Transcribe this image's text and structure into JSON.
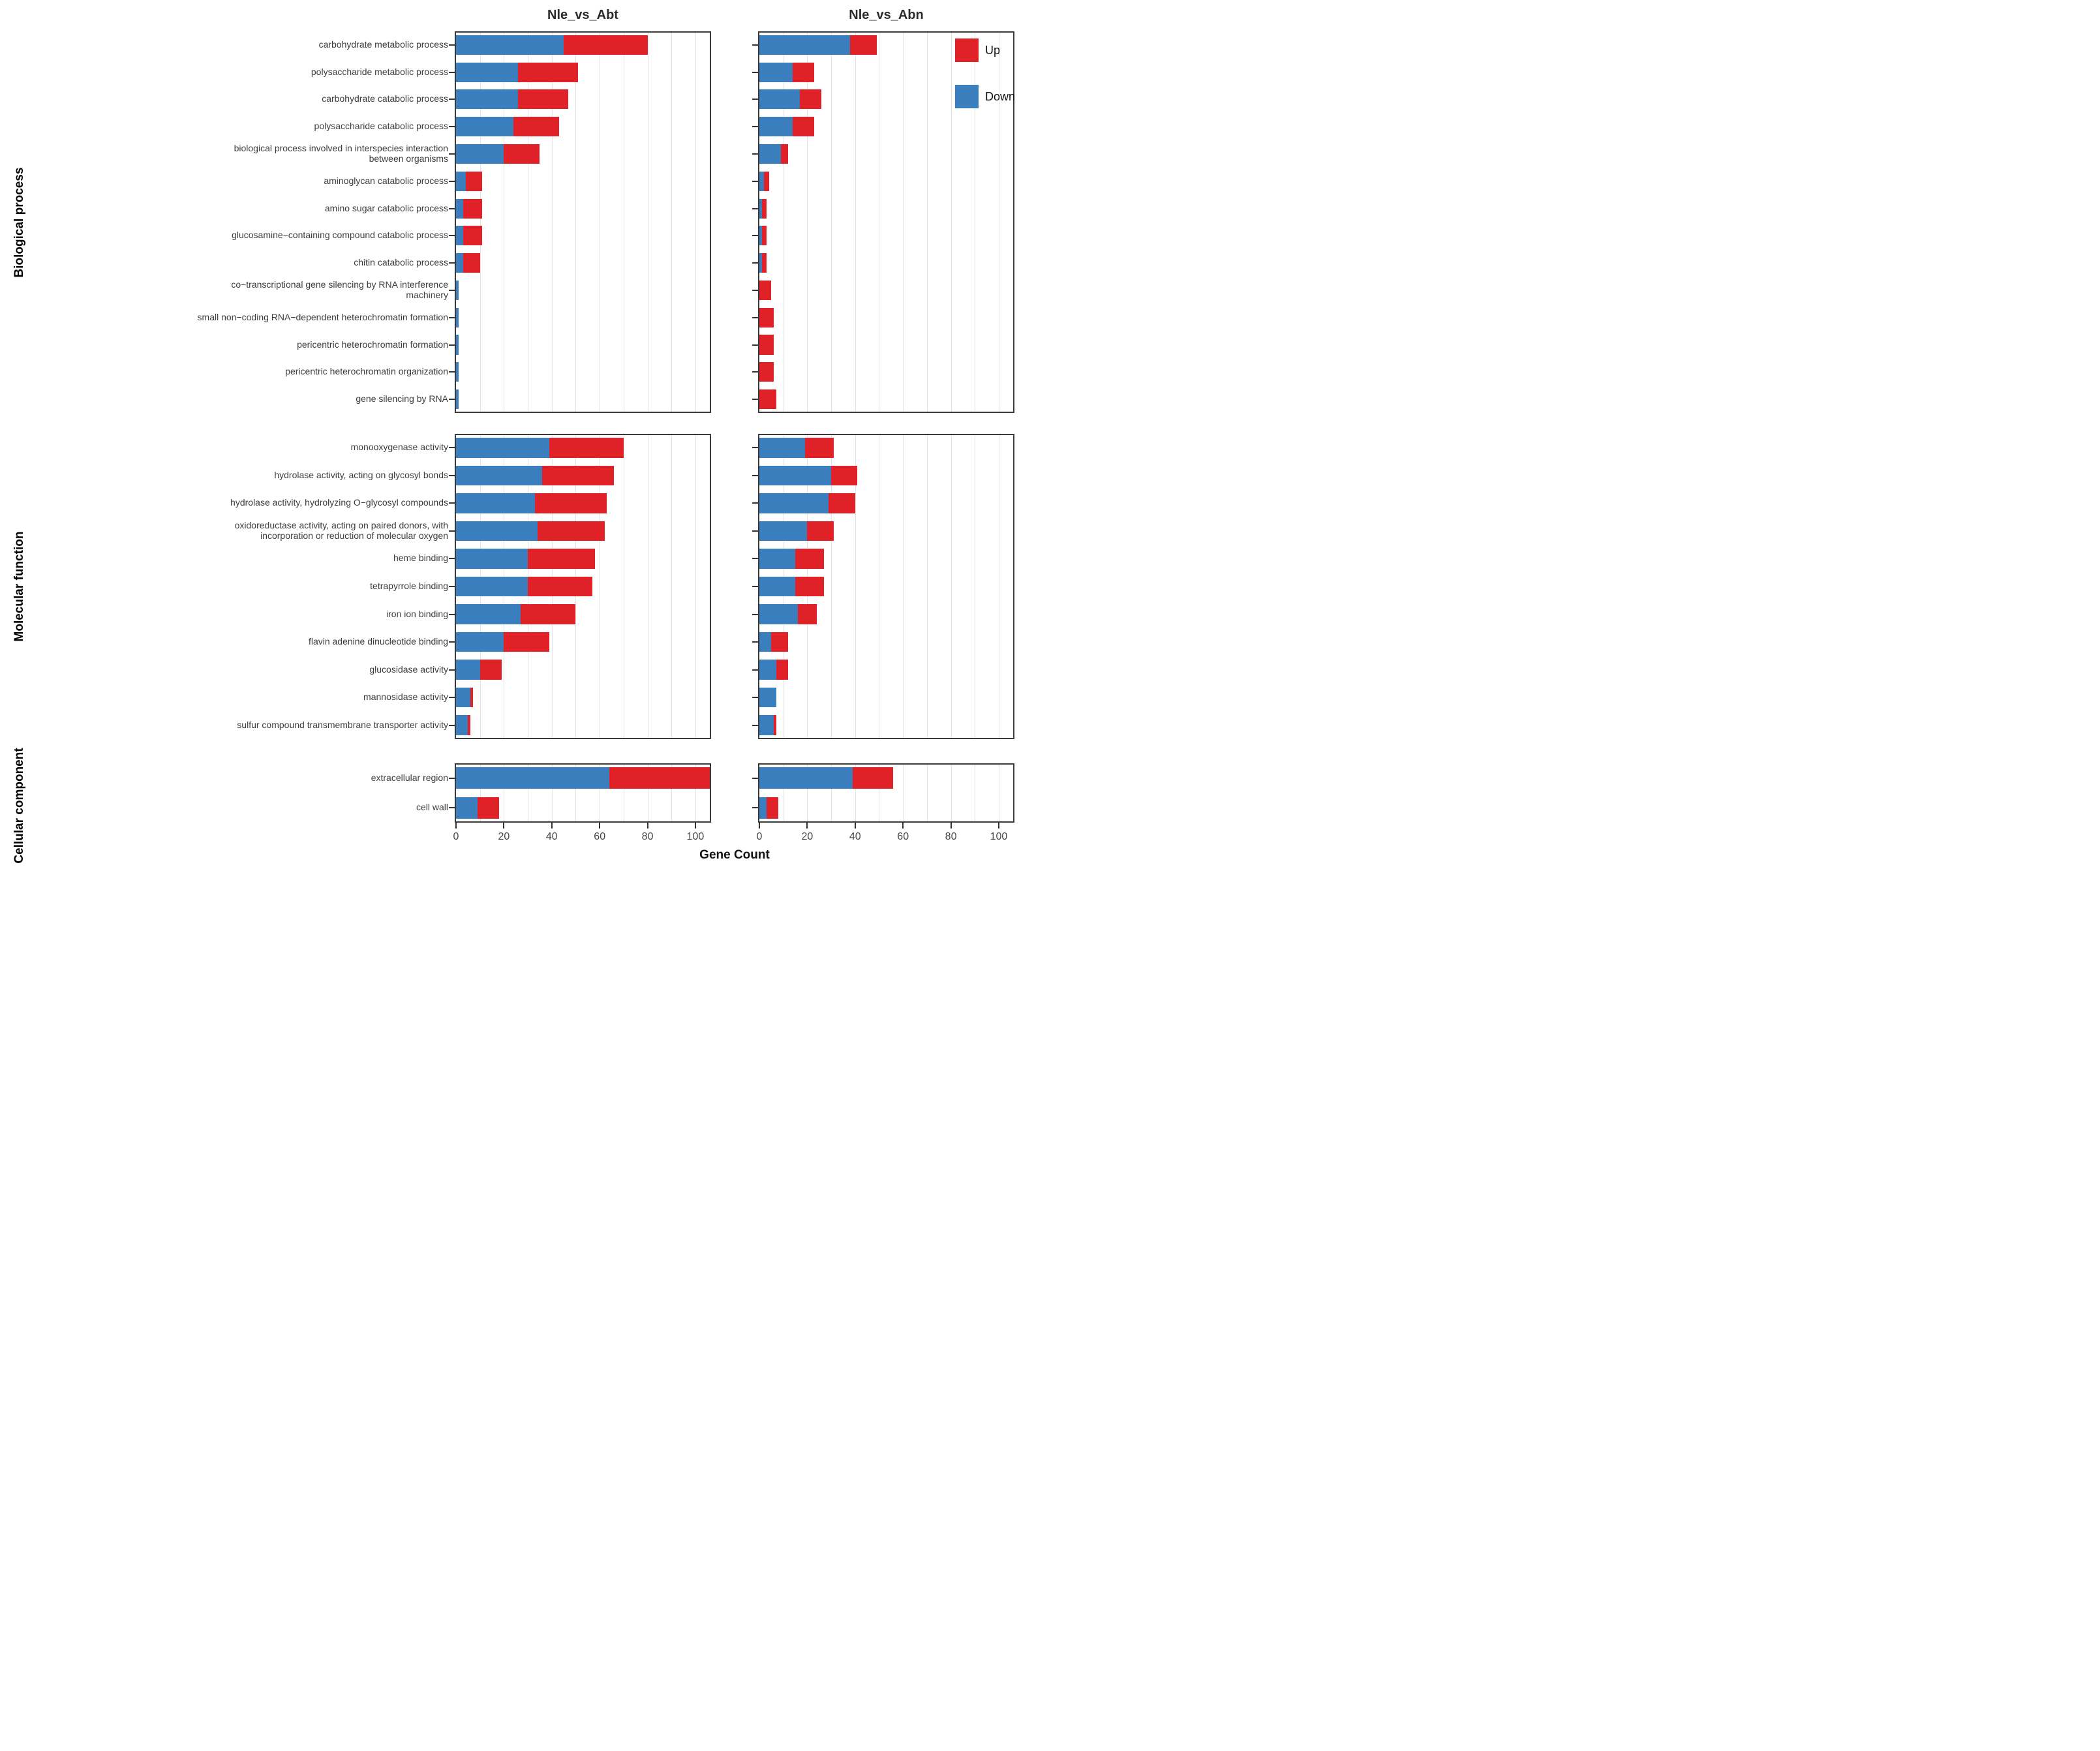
{
  "chart_data": {
    "type": "bar",
    "orientation": "horizontal",
    "stacked": true,
    "xlabel": "Gene Count",
    "x_ticks": [
      0,
      20,
      40,
      60,
      80,
      100
    ],
    "xlim": [
      0,
      106
    ],
    "grid_step": 10,
    "grid": true,
    "legend_position": "top-right-panel-inside",
    "colors": {
      "up": "#e02127",
      "down": "#3b7ebd",
      "panel_border": "#3a3a3a",
      "gridline": "#e4e4e4",
      "text": "#3c3c3c"
    },
    "legend": [
      {
        "key": "up",
        "label": "Up",
        "color": "#e02127"
      },
      {
        "key": "down",
        "label": "Down",
        "color": "#3b7ebd"
      }
    ],
    "column_facets": [
      {
        "key": "abt",
        "title": "Nle_vs_Abt"
      },
      {
        "key": "abn",
        "title": "Nle_vs_Abn"
      }
    ],
    "row_facets": [
      {
        "label": "Biological process",
        "rows": [
          {
            "lines": [
              "carbohydrate metabolic process"
            ],
            "abt": {
              "down": 45,
              "up": 35
            },
            "abn": {
              "down": 38,
              "up": 11
            }
          },
          {
            "lines": [
              "polysaccharide metabolic process"
            ],
            "abt": {
              "down": 26,
              "up": 25
            },
            "abn": {
              "down": 14,
              "up": 9
            }
          },
          {
            "lines": [
              "carbohydrate catabolic process"
            ],
            "abt": {
              "down": 26,
              "up": 21
            },
            "abn": {
              "down": 17,
              "up": 9
            }
          },
          {
            "lines": [
              "polysaccharide catabolic process"
            ],
            "abt": {
              "down": 24,
              "up": 19
            },
            "abn": {
              "down": 14,
              "up": 9
            }
          },
          {
            "lines": [
              "biological process involved in interspecies interaction",
              "between organisms"
            ],
            "abt": {
              "down": 20,
              "up": 15
            },
            "abn": {
              "down": 9,
              "up": 3
            }
          },
          {
            "lines": [
              "aminoglycan catabolic process"
            ],
            "abt": {
              "down": 4,
              "up": 7
            },
            "abn": {
              "down": 2,
              "up": 2
            }
          },
          {
            "lines": [
              "amino sugar catabolic process"
            ],
            "abt": {
              "down": 3,
              "up": 8
            },
            "abn": {
              "down": 1,
              "up": 2
            }
          },
          {
            "lines": [
              "glucosamine−containing compound catabolic process"
            ],
            "abt": {
              "down": 3,
              "up": 8
            },
            "abn": {
              "down": 1,
              "up": 2
            }
          },
          {
            "lines": [
              "chitin catabolic process"
            ],
            "abt": {
              "down": 3,
              "up": 7
            },
            "abn": {
              "down": 1,
              "up": 2
            }
          },
          {
            "lines": [
              "co−transcriptional gene silencing by RNA interference",
              "machinery"
            ],
            "abt": {
              "down": 1,
              "up": 0
            },
            "abn": {
              "down": 0,
              "up": 5
            }
          },
          {
            "lines": [
              "small non−coding RNA−dependent heterochromatin formation"
            ],
            "abt": {
              "down": 1,
              "up": 0
            },
            "abn": {
              "down": 0,
              "up": 6
            }
          },
          {
            "lines": [
              "pericentric heterochromatin formation"
            ],
            "abt": {
              "down": 1,
              "up": 0
            },
            "abn": {
              "down": 0,
              "up": 6
            }
          },
          {
            "lines": [
              "pericentric heterochromatin organization"
            ],
            "abt": {
              "down": 1,
              "up": 0
            },
            "abn": {
              "down": 0,
              "up": 6
            }
          },
          {
            "lines": [
              "gene silencing by RNA"
            ],
            "abt": {
              "down": 1,
              "up": 0
            },
            "abn": {
              "down": 0,
              "up": 7
            }
          }
        ]
      },
      {
        "label": "Molecular function",
        "rows": [
          {
            "lines": [
              "monooxygenase activity"
            ],
            "abt": {
              "down": 39,
              "up": 31
            },
            "abn": {
              "down": 19,
              "up": 12
            }
          },
          {
            "lines": [
              "hydrolase activity, acting on glycosyl bonds"
            ],
            "abt": {
              "down": 36,
              "up": 30
            },
            "abn": {
              "down": 30,
              "up": 11
            }
          },
          {
            "lines": [
              "hydrolase activity, hydrolyzing O−glycosyl compounds"
            ],
            "abt": {
              "down": 33,
              "up": 30
            },
            "abn": {
              "down": 29,
              "up": 11
            }
          },
          {
            "lines": [
              "oxidoreductase activity, acting on paired donors, with",
              "incorporation or reduction of molecular oxygen"
            ],
            "abt": {
              "down": 34,
              "up": 28
            },
            "abn": {
              "down": 20,
              "up": 11
            }
          },
          {
            "lines": [
              "heme binding"
            ],
            "abt": {
              "down": 30,
              "up": 28
            },
            "abn": {
              "down": 15,
              "up": 12
            }
          },
          {
            "lines": [
              "tetrapyrrole binding"
            ],
            "abt": {
              "down": 30,
              "up": 27
            },
            "abn": {
              "down": 15,
              "up": 12
            }
          },
          {
            "lines": [
              "iron ion binding"
            ],
            "abt": {
              "down": 27,
              "up": 23
            },
            "abn": {
              "down": 16,
              "up": 8
            }
          },
          {
            "lines": [
              "flavin adenine dinucleotide binding"
            ],
            "abt": {
              "down": 20,
              "up": 19
            },
            "abn": {
              "down": 5,
              "up": 7
            }
          },
          {
            "lines": [
              "glucosidase activity"
            ],
            "abt": {
              "down": 10,
              "up": 9
            },
            "abn": {
              "down": 7,
              "up": 5
            }
          },
          {
            "lines": [
              "mannosidase activity"
            ],
            "abt": {
              "down": 6,
              "up": 1
            },
            "abn": {
              "down": 7,
              "up": 0
            }
          },
          {
            "lines": [
              "sulfur compound transmembrane transporter activity"
            ],
            "abt": {
              "down": 5,
              "up": 1
            },
            "abn": {
              "down": 6,
              "up": 1
            }
          }
        ]
      },
      {
        "label": "Cellular component",
        "rows": [
          {
            "lines": [
              "extracellular region"
            ],
            "abt": {
              "down": 64,
              "up": 42
            },
            "abn": {
              "down": 39,
              "up": 17
            }
          },
          {
            "lines": [
              "cell wall"
            ],
            "abt": {
              "down": 9,
              "up": 9
            },
            "abn": {
              "down": 3,
              "up": 5
            }
          }
        ]
      }
    ]
  }
}
